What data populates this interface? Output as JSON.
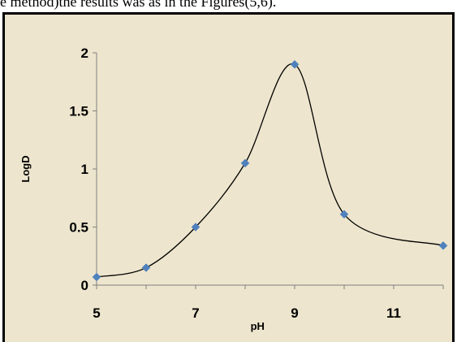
{
  "caption": {
    "text": "e method)the results was as in the Figures(5,6)."
  },
  "chart_data": {
    "type": "scatter",
    "title": "",
    "xlabel": "pH",
    "ylabel": "LogD",
    "xlim": [
      5,
      12
    ],
    "ylim": [
      0,
      2
    ],
    "x_ticks": [
      5,
      7,
      9,
      11
    ],
    "y_ticks": [
      0,
      0.5,
      1,
      1.5,
      2
    ],
    "x_tick_labels": [
      "5",
      "7",
      "9",
      "11"
    ],
    "y_tick_labels": [
      "0",
      "0.5",
      "1",
      "1.5",
      "2"
    ],
    "grid": false,
    "legend": "none",
    "smooth_line": true,
    "colors": {
      "marker": "#4f81bd",
      "line": "#000000",
      "axis": "#808080",
      "background": "#ede5cd"
    },
    "series": [
      {
        "x": [
          5,
          6,
          7,
          8,
          9,
          10,
          12
        ],
        "y": [
          0.07,
          0.15,
          0.5,
          1.05,
          1.9,
          0.61,
          0.34
        ]
      }
    ]
  }
}
